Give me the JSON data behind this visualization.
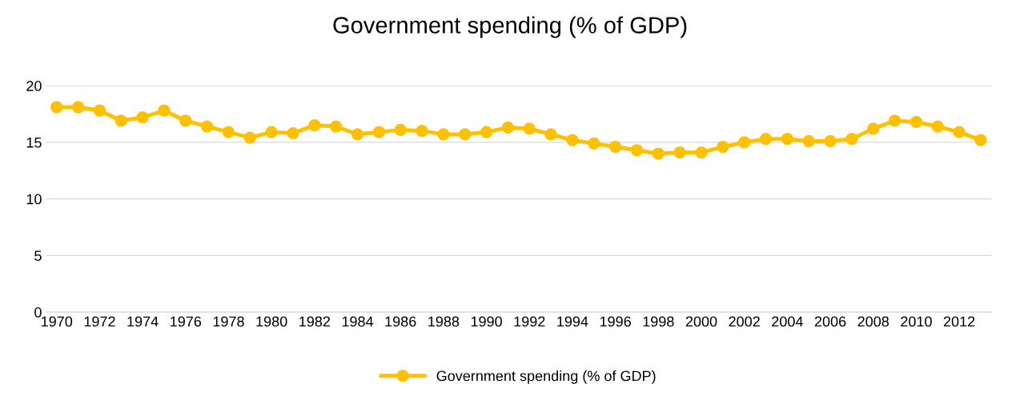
{
  "chart_data": {
    "type": "line",
    "title": "Government spending (% of GDP)",
    "categories": [
      "1970",
      null,
      "1972",
      null,
      "1974",
      null,
      "1976",
      null,
      "1978",
      null,
      "1980",
      null,
      "1982",
      null,
      "1984",
      null,
      "1986",
      null,
      "1988",
      null,
      "1990",
      null,
      "1992",
      null,
      "1994",
      null,
      "1996",
      null,
      "1998",
      null,
      "2000",
      null,
      "2002",
      null,
      "2004",
      null,
      "2006",
      null,
      "2008",
      null,
      "2010",
      null,
      "2012",
      null
    ],
    "series": [
      {
        "name": "Government spending (% of GDP)",
        "color": "#ffc000",
        "values": [
          18.1,
          18.1,
          17.8,
          16.9,
          17.2,
          17.8,
          16.9,
          16.4,
          15.9,
          15.4,
          15.9,
          15.8,
          16.5,
          16.4,
          15.7,
          15.9,
          16.1,
          16.0,
          15.7,
          15.7,
          15.9,
          16.3,
          16.2,
          15.7,
          15.2,
          14.9,
          14.6,
          14.3,
          14.0,
          14.1,
          14.1,
          14.6,
          15.0,
          15.3,
          15.3,
          15.1,
          15.1,
          15.3,
          16.2,
          16.9,
          16.8,
          16.4,
          15.9,
          15.2
        ]
      }
    ],
    "ylim": [
      0,
      20
    ],
    "yticks": [
      0,
      5,
      10,
      15,
      20
    ],
    "grid": "y",
    "legend": "bottom",
    "marker": "circle",
    "line_style": "solid"
  }
}
